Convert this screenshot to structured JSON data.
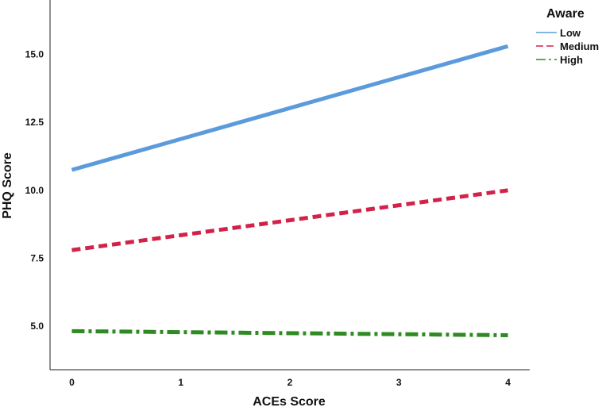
{
  "chart_data": {
    "type": "line",
    "xlabel": "ACEs Score",
    "ylabel": "PHQ Score",
    "x": [
      0,
      4
    ],
    "x_ticks": [
      "0",
      "1",
      "2",
      "3",
      "4"
    ],
    "y_ticks": [
      "5.0",
      "7.5",
      "10.0",
      "12.5",
      "15.0"
    ],
    "xlim": [
      -0.2,
      4.2
    ],
    "ylim": [
      3.4,
      17.0
    ],
    "grid": false,
    "legend": {
      "title": "Aware",
      "position": "top-right"
    },
    "series": [
      {
        "name": "Low",
        "values": [
          10.75,
          15.3
        ],
        "color": "#5b9bdc",
        "style": "solid"
      },
      {
        "name": "Medium",
        "values": [
          7.8,
          10.0
        ],
        "color": "#d2224a",
        "style": "dashed"
      },
      {
        "name": "High",
        "values": [
          4.82,
          4.67
        ],
        "color": "#2e8b22",
        "style": "dashdot"
      }
    ]
  }
}
